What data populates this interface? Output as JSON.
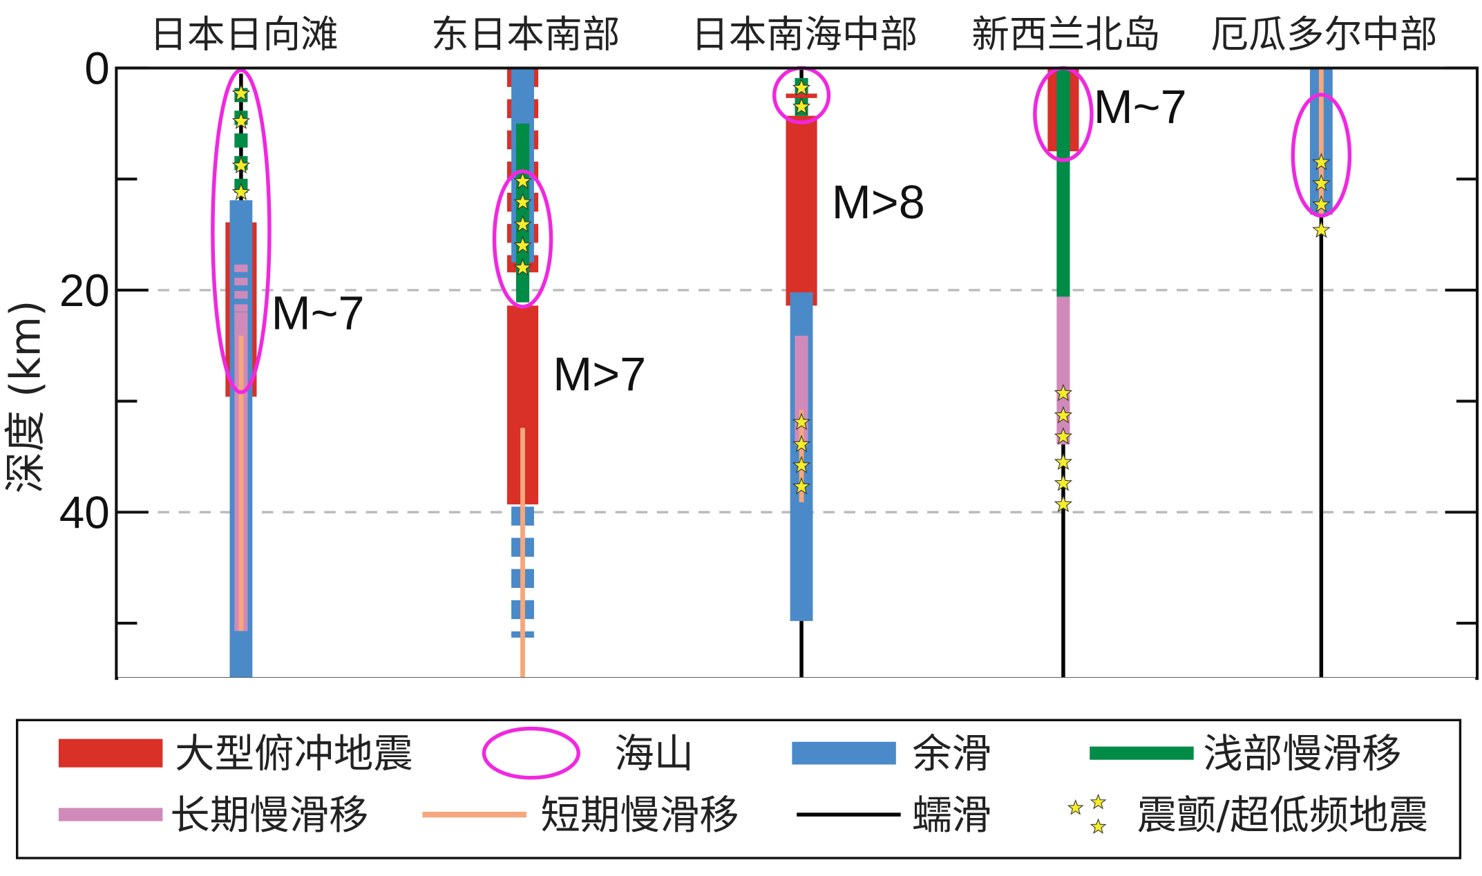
{
  "chart_data": {
    "type": "column-profile",
    "ylabel": "深度 (km)",
    "ylim": [
      0,
      55
    ],
    "y_inverted": true,
    "yticks_major": [
      0,
      20,
      40
    ],
    "yticks_minor": [
      10,
      30,
      50
    ],
    "gridlines_dashed_at": [
      20,
      40
    ],
    "colors": {
      "megathrust": "#d93028",
      "seamount": "#f028e0",
      "afterslip": "#4a8ac9",
      "shallow_sse": "#008c46",
      "long_sse": "#d08aba",
      "short_sse": "#f5a77d",
      "creep": "#000000",
      "tremor": "#f5ec2a"
    },
    "columns": [
      {
        "name": "日本日向滩",
        "segments": [
          {
            "type": "creep",
            "top": 0.5,
            "bottom": 12,
            "style": "solid"
          },
          {
            "type": "shallow_sse",
            "top": 1.8,
            "bottom": 13.2,
            "style": "dashed"
          },
          {
            "type": "megathrust",
            "top": 13.9,
            "bottom": 29.6,
            "style": "solid"
          },
          {
            "type": "afterslip",
            "top": 11.9,
            "bottom": 55,
            "style": "solid"
          },
          {
            "type": "long_sse",
            "top": 17.7,
            "bottom": 22,
            "style": "dashed"
          },
          {
            "type": "long_sse",
            "top": 22,
            "bottom": 50.7,
            "style": "solid"
          },
          {
            "type": "short_sse",
            "top": 24.1,
            "bottom": 50.7,
            "style": "solid"
          }
        ],
        "tremor_depths": [
          2.3,
          4.8,
          8.8,
          11.2
        ],
        "seamount": [
          0.2,
          29.2
        ],
        "magnitude": {
          "text": "M~7",
          "depth": 22
        }
      },
      {
        "name": "东日本南部",
        "segments": [
          {
            "type": "megathrust",
            "top": 0,
            "bottom": 18.4,
            "style": "dashed"
          },
          {
            "type": "afterslip",
            "top": 0,
            "bottom": 17.5,
            "style": "solid"
          },
          {
            "type": "shallow_sse",
            "top": 5,
            "bottom": 21.1,
            "style": "solid"
          },
          {
            "type": "megathrust",
            "top": 21.4,
            "bottom": 39.3,
            "style": "solid"
          },
          {
            "type": "afterslip",
            "top": 39.5,
            "bottom": 51.3,
            "style": "dashed"
          },
          {
            "type": "short_sse",
            "top": 32.4,
            "bottom": 55,
            "style": "solid"
          }
        ],
        "tremor_depths": [
          10.2,
          12.1,
          14.1,
          16,
          18
        ],
        "seamount": [
          9.3,
          21.5
        ],
        "magnitude": {
          "text": "M>7",
          "depth": 27.5
        }
      },
      {
        "name": "日本南海中部",
        "segments": [
          {
            "type": "creep",
            "top": 0,
            "bottom": 1,
            "style": "solid"
          },
          {
            "type": "shallow_sse",
            "top": 0.9,
            "bottom": 4.3,
            "style": "solid"
          },
          {
            "type": "megathrust",
            "top": 2.3,
            "bottom": 2.7,
            "style": "solid"
          },
          {
            "type": "megathrust",
            "top": 4.3,
            "bottom": 21.4,
            "style": "solid"
          },
          {
            "type": "afterslip",
            "top": 20.2,
            "bottom": 49.8,
            "style": "solid"
          },
          {
            "type": "long_sse",
            "top": 24.1,
            "bottom": 34,
            "style": "solid"
          },
          {
            "type": "short_sse",
            "top": 30.8,
            "bottom": 39.1,
            "style": "solid"
          },
          {
            "type": "creep",
            "top": 49.8,
            "bottom": 55,
            "style": "solid"
          }
        ],
        "tremor_depths": [
          1.8,
          3.5,
          31.9,
          33.9,
          35.8,
          37.7
        ],
        "seamount": [
          0,
          4.9
        ],
        "magnitude": {
          "text": "M>8",
          "depth": 12
        }
      },
      {
        "name": "新西兰北岛",
        "segments": [
          {
            "type": "megathrust",
            "top": 0,
            "bottom": 7.5,
            "style": "solid"
          },
          {
            "type": "shallow_sse",
            "top": 0,
            "bottom": 20.6,
            "style": "solid"
          },
          {
            "type": "long_sse",
            "top": 20.6,
            "bottom": 33.9,
            "style": "solid"
          },
          {
            "type": "creep",
            "top": 33.9,
            "bottom": 55,
            "style": "solid"
          }
        ],
        "tremor_depths": [
          29.3,
          31.3,
          33.2,
          35.5,
          37.4,
          39.3
        ],
        "seamount": [
          0,
          8.3
        ],
        "magnitude": {
          "text": "M~7",
          "depth": 3.4
        }
      },
      {
        "name": "厄瓜多尔中部",
        "segments": [
          {
            "type": "afterslip",
            "top": 0,
            "bottom": 13.2,
            "style": "solid"
          },
          {
            "type": "short_sse",
            "top": 0,
            "bottom": 13.2,
            "style": "solid"
          },
          {
            "type": "creep",
            "top": 13.2,
            "bottom": 55,
            "style": "solid"
          }
        ],
        "tremor_depths": [
          8.5,
          10.4,
          12.3,
          14.6
        ],
        "seamount": [
          2.4,
          13.3
        ],
        "magnitude": null
      }
    ],
    "legend": [
      {
        "key": "megathrust",
        "label": "大型俯冲地震"
      },
      {
        "key": "seamount",
        "label": "海山"
      },
      {
        "key": "afterslip",
        "label": "余滑"
      },
      {
        "key": "shallow_sse",
        "label": "浅部慢滑移"
      },
      {
        "key": "long_sse",
        "label": "长期慢滑移"
      },
      {
        "key": "short_sse",
        "label": "短期慢滑移"
      },
      {
        "key": "creep",
        "label": "蠕滑"
      },
      {
        "key": "tremor",
        "label": "震颤/超低频地震"
      }
    ],
    "legend_placement": "bottom"
  }
}
